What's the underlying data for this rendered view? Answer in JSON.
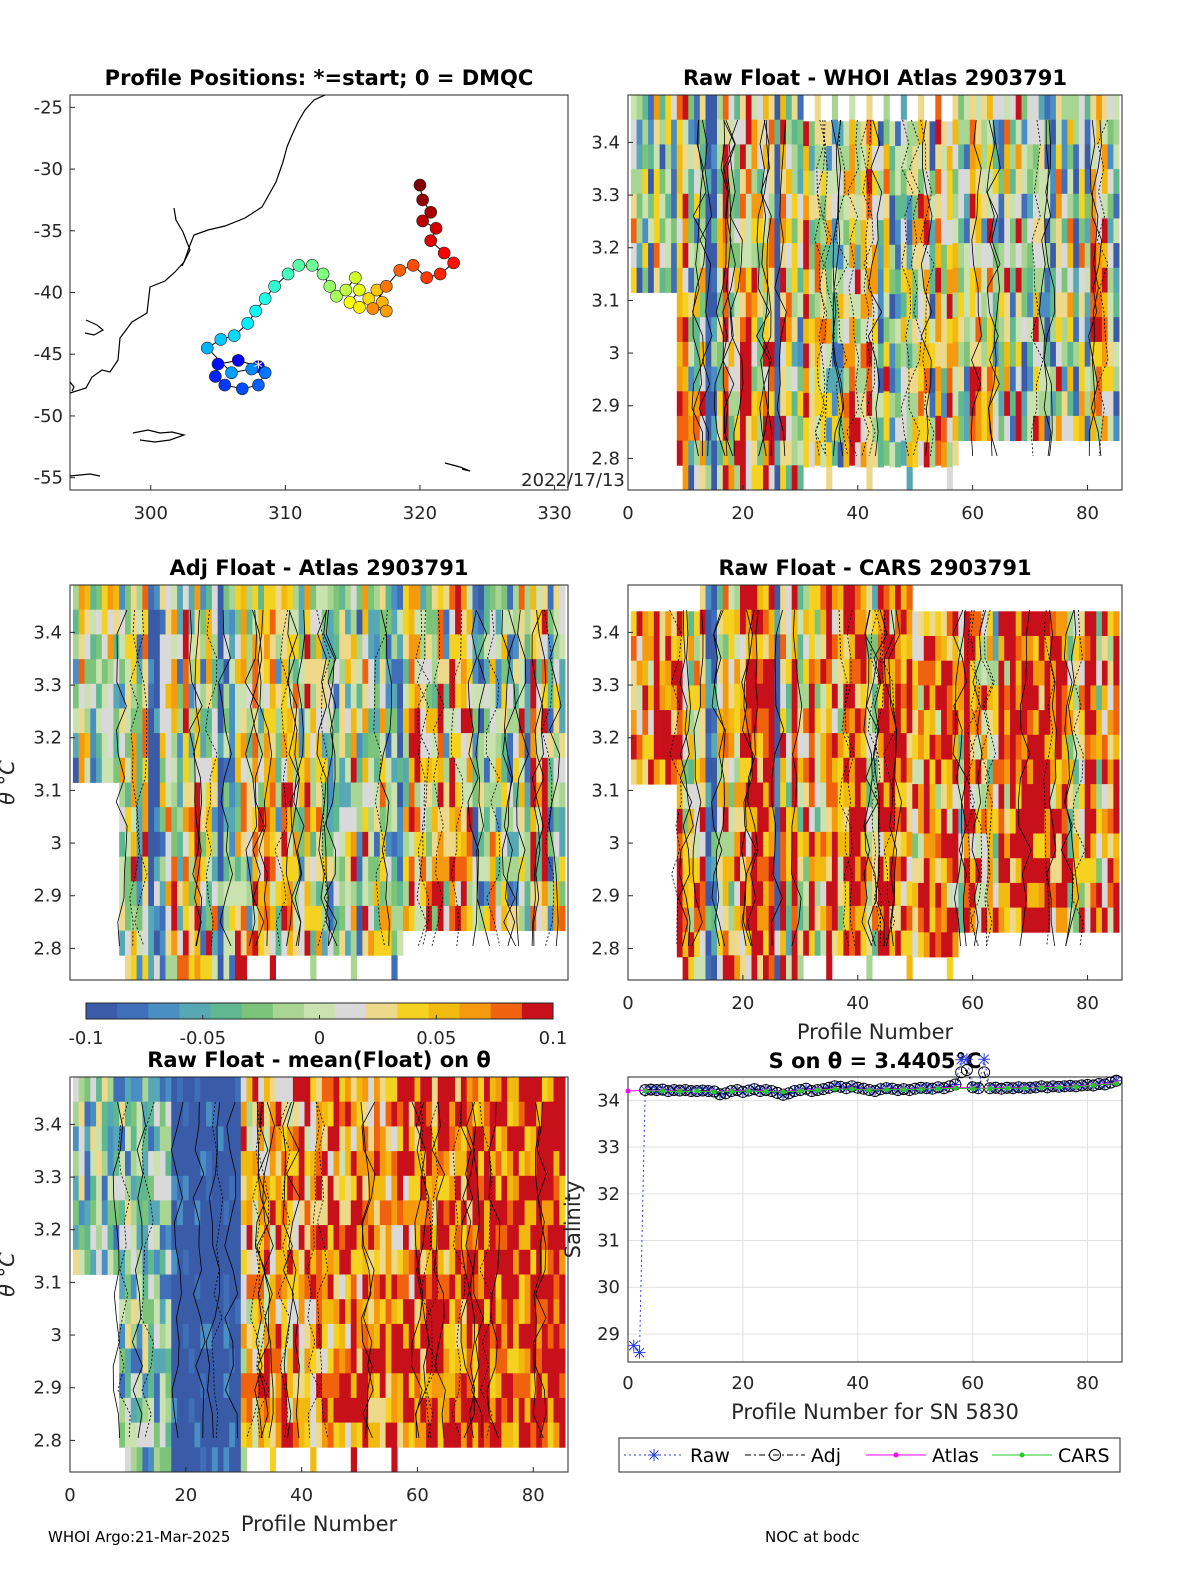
{
  "footer": {
    "left": "WHOI Argo:21-Mar-2025",
    "right": "NOC at bodc"
  },
  "colors": {
    "diverging_palette": [
      "#3a5ba8",
      "#3f6fb8",
      "#4a8fc4",
      "#57a8b5",
      "#5fb890",
      "#7cc47a",
      "#a8d692",
      "#c9e2b0",
      "#d9d9d9",
      "#eed98a",
      "#f5d21f",
      "#f2b90f",
      "#f59a0c",
      "#f0620d",
      "#c8101a"
    ],
    "raw": "#2a3fd6",
    "adj": "#000000",
    "atlas": "#ff00ff",
    "cars": "#22cc22"
  },
  "map_panel": {
    "title": "Profile Positions: *=start; 0 = DMQC",
    "date_label": "2022/17/13",
    "xticks": [
      "300",
      "310",
      "320",
      "330"
    ],
    "yticks": [
      "-25",
      "-30",
      "-35",
      "-40",
      "-45",
      "-50",
      "-55"
    ],
    "xlim": [
      294,
      331
    ],
    "ylim": [
      -56,
      -24
    ],
    "start_marker": "*",
    "track": [
      {
        "lon": 308.0,
        "lat": -46.0
      },
      {
        "lon": 306.5,
        "lat": -45.5
      },
      {
        "lon": 305.0,
        "lat": -45.8
      },
      {
        "lon": 304.8,
        "lat": -46.8
      },
      {
        "lon": 305.5,
        "lat": -47.5
      },
      {
        "lon": 306.8,
        "lat": -47.8
      },
      {
        "lon": 308.0,
        "lat": -47.5
      },
      {
        "lon": 308.5,
        "lat": -46.5
      },
      {
        "lon": 307.5,
        "lat": -46.2
      },
      {
        "lon": 306.0,
        "lat": -46.5
      },
      {
        "lon": 304.2,
        "lat": -44.5
      },
      {
        "lon": 305.2,
        "lat": -43.8
      },
      {
        "lon": 306.2,
        "lat": -43.5
      },
      {
        "lon": 307.2,
        "lat": -42.5
      },
      {
        "lon": 307.8,
        "lat": -41.5
      },
      {
        "lon": 308.5,
        "lat": -40.5
      },
      {
        "lon": 309.2,
        "lat": -39.5
      },
      {
        "lon": 310.2,
        "lat": -38.5
      },
      {
        "lon": 311.0,
        "lat": -37.8
      },
      {
        "lon": 312.0,
        "lat": -37.8
      },
      {
        "lon": 312.8,
        "lat": -38.5
      },
      {
        "lon": 313.3,
        "lat": -39.5
      },
      {
        "lon": 313.8,
        "lat": -40.3
      },
      {
        "lon": 314.5,
        "lat": -39.8
      },
      {
        "lon": 315.2,
        "lat": -38.8
      },
      {
        "lon": 315.5,
        "lat": -39.8
      },
      {
        "lon": 314.8,
        "lat": -40.8
      },
      {
        "lon": 315.5,
        "lat": -41.2
      },
      {
        "lon": 316.2,
        "lat": -40.5
      },
      {
        "lon": 316.8,
        "lat": -39.8
      },
      {
        "lon": 317.2,
        "lat": -40.8
      },
      {
        "lon": 317.5,
        "lat": -41.5
      },
      {
        "lon": 316.5,
        "lat": -41.3
      },
      {
        "lon": 317.5,
        "lat": -39.5
      },
      {
        "lon": 318.5,
        "lat": -38.2
      },
      {
        "lon": 319.5,
        "lat": -37.8
      },
      {
        "lon": 320.5,
        "lat": -38.8
      },
      {
        "lon": 321.5,
        "lat": -38.5
      },
      {
        "lon": 322.5,
        "lat": -37.6
      },
      {
        "lon": 321.8,
        "lat": -36.8
      },
      {
        "lon": 320.8,
        "lat": -35.8
      },
      {
        "lon": 321.2,
        "lat": -34.8
      },
      {
        "lon": 320.2,
        "lat": -34.2
      },
      {
        "lon": 320.8,
        "lat": -33.5
      },
      {
        "lon": 320.2,
        "lat": -32.5
      },
      {
        "lon": 320.0,
        "lat": -31.3
      }
    ]
  },
  "colorbar": {
    "ticks": [
      "-0.1",
      "-0.05",
      "0",
      "0.05",
      "0.1"
    ],
    "range": [
      -0.1,
      0.1
    ]
  },
  "chart_data": [
    {
      "type": "heatmap",
      "title": "Raw Float - WHOI Atlas  2903791",
      "xlabel": "",
      "ylabel": "",
      "xticks": [
        "0",
        "20",
        "40",
        "60",
        "80"
      ],
      "yticks": [
        "2.8",
        "2.9",
        "3",
        "3.1",
        "3.2",
        "3.3",
        "3.4"
      ],
      "xlim": [
        0,
        86
      ],
      "ylim": [
        2.74,
        3.49
      ],
      "color_range": [
        -0.1,
        0.1
      ],
      "note": "cells show salinity anomaly on theta levels"
    },
    {
      "type": "heatmap",
      "title": "Adj Float - Atlas  2903791",
      "xlabel": "",
      "ylabel": "θ °C",
      "xticks": [],
      "yticks": [
        "2.8",
        "2.9",
        "3",
        "3.1",
        "3.2",
        "3.3",
        "3.4"
      ],
      "xlim": [
        0,
        86
      ],
      "ylim": [
        2.74,
        3.49
      ],
      "color_range": [
        -0.1,
        0.1
      ]
    },
    {
      "type": "heatmap",
      "title": "Raw Float - CARS  2903791",
      "xlabel": "Profile Number",
      "ylabel": "",
      "xticks": [
        "0",
        "20",
        "40",
        "60",
        "80"
      ],
      "yticks": [
        "2.8",
        "2.9",
        "3",
        "3.1",
        "3.2",
        "3.3",
        "3.4"
      ],
      "xlim": [
        0,
        86
      ],
      "ylim": [
        2.74,
        3.49
      ],
      "color_range": [
        -0.1,
        0.1
      ]
    },
    {
      "type": "heatmap",
      "title": "Raw Float - mean(Float) on θ",
      "xlabel": "Profile Number",
      "ylabel": "θ °C",
      "xticks": [
        "0",
        "20",
        "40",
        "60",
        "80"
      ],
      "yticks": [
        "2.8",
        "2.9",
        "3",
        "3.1",
        "3.2",
        "3.3",
        "3.4"
      ],
      "xlim": [
        0,
        86
      ],
      "ylim": [
        2.74,
        3.49
      ],
      "color_range": [
        -0.1,
        0.1
      ]
    },
    {
      "type": "line",
      "title": "S on θ = 3.4405°C",
      "xlabel": "Profile Number for SN 5830",
      "ylabel": "Salinity",
      "xticks": [
        "0",
        "20",
        "40",
        "60",
        "80"
      ],
      "yticks": [
        "29",
        "30",
        "31",
        "32",
        "33",
        "34"
      ],
      "xlim": [
        0,
        86
      ],
      "ylim": [
        28.4,
        34.5
      ],
      "grid": true,
      "legend_position": "below",
      "series": [
        {
          "name": "Raw",
          "marker": "*",
          "line": "dotted",
          "x": [
            1,
            2,
            3,
            4,
            5,
            6,
            7,
            8,
            9,
            10,
            11,
            12,
            13,
            14,
            15,
            16,
            17,
            18,
            19,
            20,
            21,
            22,
            23,
            24,
            25,
            26,
            27,
            28,
            29,
            30,
            31,
            32,
            33,
            34,
            35,
            36,
            37,
            38,
            39,
            40,
            41,
            42,
            43,
            44,
            45,
            46,
            47,
            48,
            49,
            50,
            51,
            52,
            53,
            54,
            55,
            56,
            57,
            58,
            59,
            60,
            61,
            62,
            63,
            64,
            65,
            66,
            67,
            68,
            69,
            70,
            71,
            72,
            73,
            74,
            75,
            76,
            77,
            78,
            79,
            80,
            81,
            82,
            83,
            84,
            85
          ],
          "y": [
            28.75,
            28.6,
            34.22,
            34.23,
            34.22,
            34.23,
            34.2,
            34.22,
            34.21,
            34.22,
            34.2,
            34.2,
            34.21,
            34.2,
            34.19,
            34.13,
            34.15,
            34.2,
            34.22,
            34.18,
            34.21,
            34.24,
            34.2,
            34.22,
            34.2,
            34.16,
            34.12,
            34.15,
            34.2,
            34.22,
            34.25,
            34.2,
            34.22,
            34.24,
            34.27,
            34.3,
            34.29,
            34.26,
            34.3,
            34.27,
            34.25,
            34.22,
            34.2,
            34.24,
            34.26,
            34.25,
            34.22,
            34.24,
            34.22,
            34.25,
            34.27,
            34.26,
            34.25,
            34.28,
            34.26,
            34.3,
            34.34,
            34.87,
            34.88,
            34.28,
            34.26,
            34.88,
            34.26,
            34.27,
            34.25,
            34.27,
            34.26,
            34.28,
            34.26,
            34.27,
            34.28,
            34.3,
            34.28,
            34.3,
            34.29,
            34.3,
            34.31,
            34.3,
            34.32,
            34.33,
            34.32,
            34.35,
            34.34,
            34.38,
            34.42
          ]
        },
        {
          "name": "Adj",
          "marker": "o",
          "line": "dashdot",
          "x": [
            3,
            4,
            5,
            6,
            7,
            8,
            9,
            10,
            11,
            12,
            13,
            14,
            15,
            16,
            17,
            18,
            19,
            20,
            21,
            22,
            23,
            24,
            25,
            26,
            27,
            28,
            29,
            30,
            31,
            32,
            33,
            34,
            35,
            36,
            37,
            38,
            39,
            40,
            41,
            42,
            43,
            44,
            45,
            46,
            47,
            48,
            49,
            50,
            51,
            52,
            53,
            54,
            55,
            56,
            57,
            58,
            59,
            60,
            61,
            62,
            63,
            64,
            65,
            66,
            67,
            68,
            69,
            70,
            71,
            72,
            73,
            74,
            75,
            76,
            77,
            78,
            79,
            80,
            81,
            82,
            83,
            84,
            85
          ],
          "y": [
            34.22,
            34.23,
            34.22,
            34.23,
            34.2,
            34.22,
            34.21,
            34.22,
            34.2,
            34.2,
            34.21,
            34.2,
            34.19,
            34.13,
            34.15,
            34.2,
            34.22,
            34.18,
            34.21,
            34.24,
            34.2,
            34.22,
            34.2,
            34.16,
            34.12,
            34.15,
            34.2,
            34.22,
            34.25,
            34.2,
            34.22,
            34.24,
            34.27,
            34.3,
            34.29,
            34.26,
            34.3,
            34.27,
            34.25,
            34.22,
            34.2,
            34.24,
            34.26,
            34.25,
            34.22,
            34.24,
            34.22,
            34.25,
            34.27,
            34.26,
            34.25,
            34.28,
            34.26,
            34.3,
            34.34,
            34.6,
            34.65,
            34.28,
            34.26,
            34.6,
            34.26,
            34.27,
            34.25,
            34.27,
            34.26,
            34.28,
            34.26,
            34.27,
            34.28,
            34.3,
            34.28,
            34.3,
            34.29,
            34.3,
            34.31,
            34.3,
            34.32,
            34.33,
            34.32,
            34.35,
            34.34,
            34.38,
            34.42
          ]
        },
        {
          "name": "Atlas",
          "marker": ".",
          "line": "solid",
          "x": [
            0,
            3,
            6,
            9,
            12,
            15,
            18,
            21,
            24,
            27,
            30,
            33,
            36,
            39,
            42,
            45,
            48,
            51,
            54,
            57,
            60,
            63,
            66,
            69,
            72,
            75,
            78,
            81,
            85
          ],
          "y": [
            34.2,
            34.21,
            34.21,
            34.2,
            34.2,
            34.19,
            34.2,
            34.21,
            34.2,
            34.19,
            34.21,
            34.23,
            34.25,
            34.25,
            34.23,
            34.24,
            34.24,
            34.25,
            34.26,
            34.28,
            34.26,
            34.26,
            34.27,
            34.27,
            34.28,
            34.29,
            34.3,
            34.33,
            34.38
          ]
        },
        {
          "name": "CARS",
          "marker": ".",
          "line": "solid",
          "x": [
            3,
            6,
            9,
            12,
            15,
            18,
            21,
            24,
            27,
            30,
            33,
            36,
            39,
            42,
            45,
            48,
            51,
            54,
            57,
            60,
            63,
            66,
            69,
            72,
            75,
            78,
            81,
            85
          ],
          "y": [
            34.2,
            34.2,
            34.19,
            34.2,
            34.18,
            34.19,
            34.2,
            34.19,
            34.18,
            34.2,
            34.22,
            34.24,
            34.24,
            34.22,
            34.23,
            34.23,
            34.24,
            34.25,
            34.26,
            34.25,
            34.25,
            34.26,
            34.26,
            34.27,
            34.28,
            34.29,
            34.32,
            34.36
          ]
        }
      ]
    }
  ]
}
